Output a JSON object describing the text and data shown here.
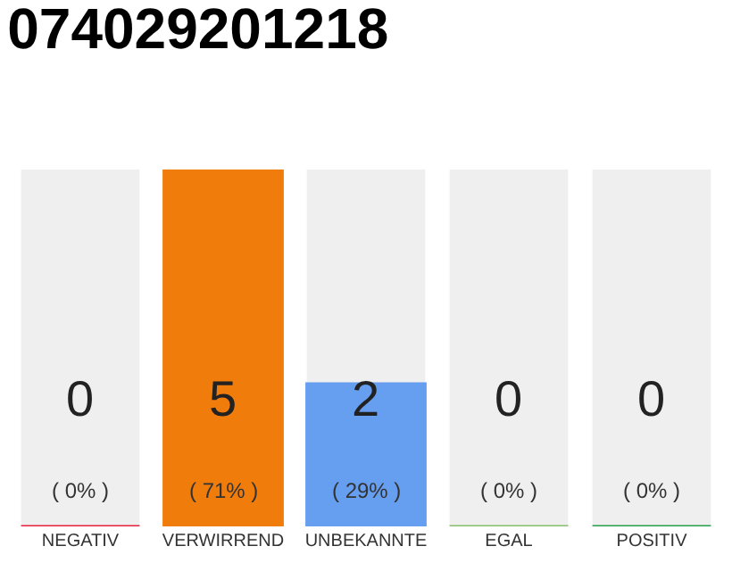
{
  "chart_data": {
    "type": "bar",
    "title": "074029201218",
    "categories": [
      "NEGATIV",
      "VERWIRREND",
      "UNBEKANNTE",
      "EGAL",
      "POSITIV"
    ],
    "values": [
      0,
      5,
      2,
      0,
      0
    ],
    "colors": [
      "#e8203c",
      "#f07c0c",
      "#669ef0",
      "#86c06a",
      "#27a04a"
    ],
    "value_labels": [
      "0\n( 0% )",
      "5\n( 71% )",
      "2\n( 29% )",
      "0\n( 0% )",
      "0\n( 0% )"
    ],
    "tick_labels": "x",
    "grid": false,
    "legend": false
  }
}
